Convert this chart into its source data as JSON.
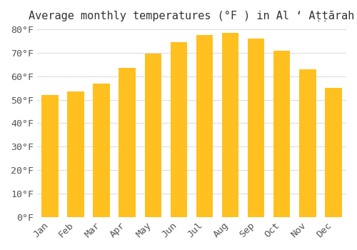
{
  "title": "Average monthly temperatures (°F ) in Al ‘ Aṭṭārah",
  "months": [
    "Jan",
    "Feb",
    "Mar",
    "Apr",
    "May",
    "Jun",
    "Jul",
    "Aug",
    "Sep",
    "Oct",
    "Nov",
    "Dec"
  ],
  "values": [
    52,
    53.5,
    57,
    63.5,
    69.5,
    74.5,
    77.5,
    78.5,
    76,
    71,
    63,
    55
  ],
  "bar_color_top": "#FFC020",
  "bar_color_bottom": "#FFB000",
  "ylim": [
    0,
    80
  ],
  "yticks": [
    0,
    10,
    20,
    30,
    40,
    50,
    60,
    70,
    80
  ],
  "ytick_labels": [
    "0°F",
    "10°F",
    "20°F",
    "30°F",
    "40°F",
    "50°F",
    "60°F",
    "70°F",
    "80°F"
  ],
  "background_color": "#ffffff",
  "grid_color": "#dddddd",
  "title_fontsize": 11,
  "tick_fontsize": 9.5,
  "bar_edge_color": "none"
}
